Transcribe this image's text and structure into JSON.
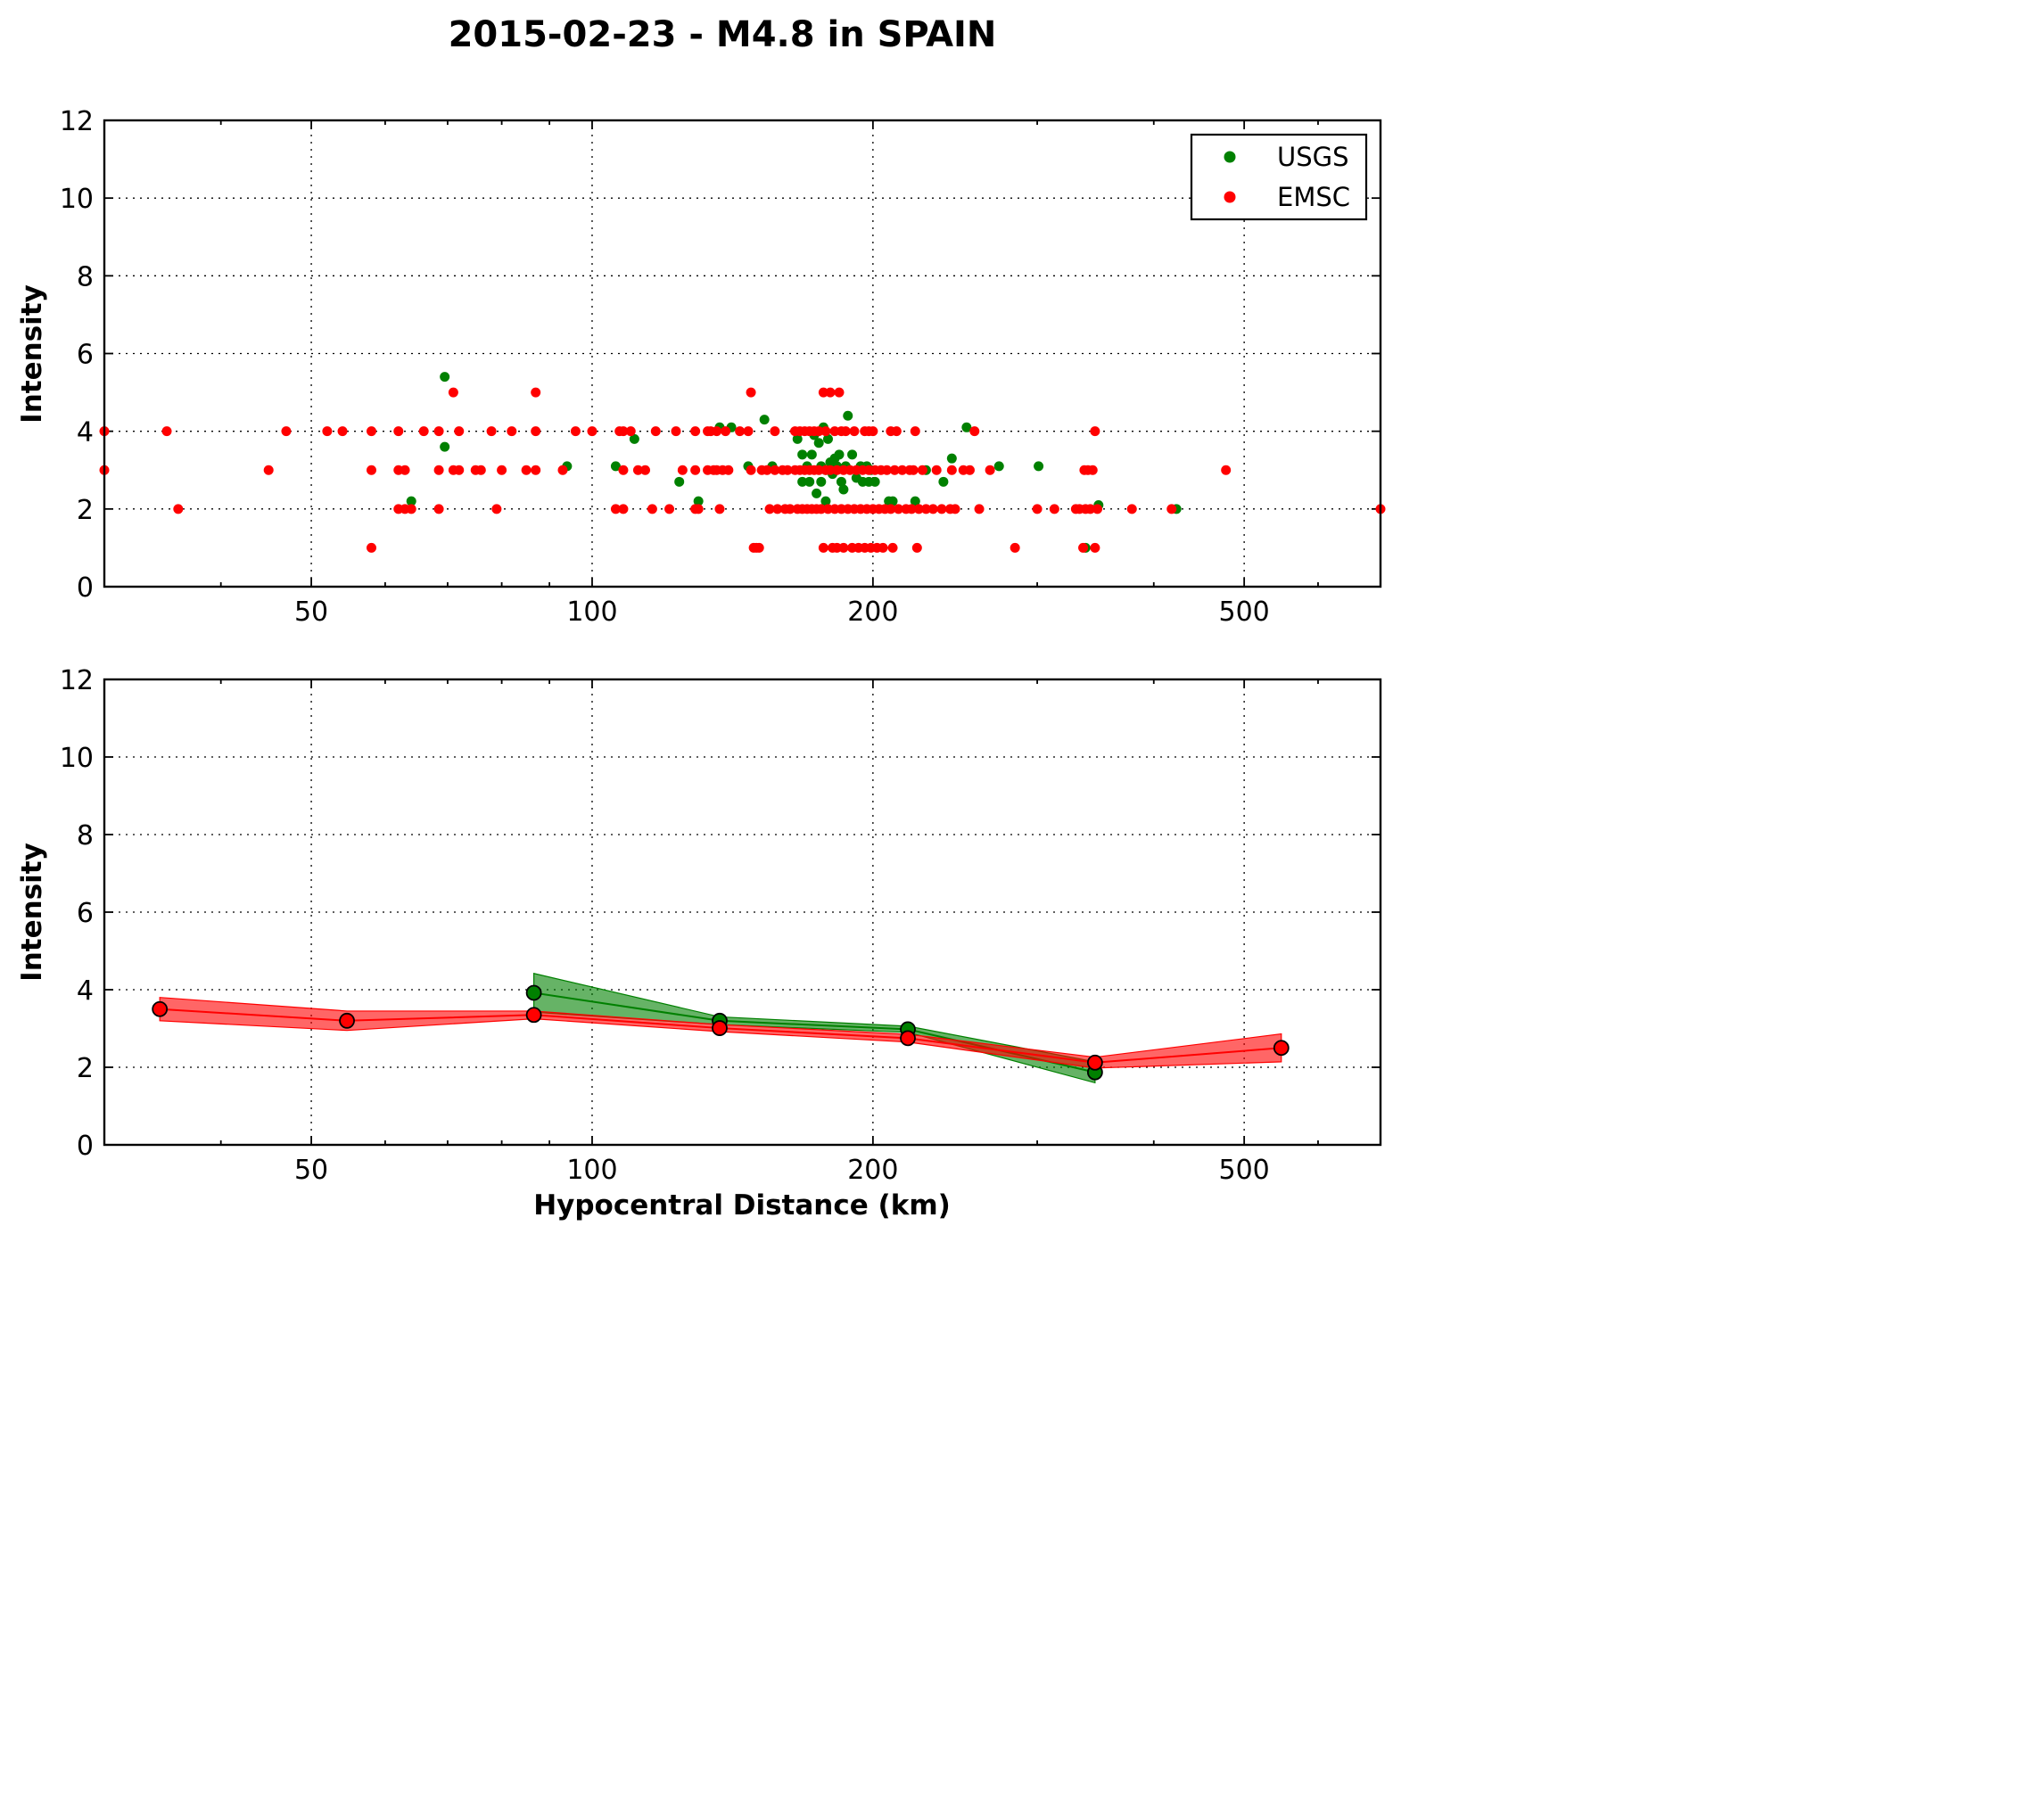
{
  "chart_data": [
    {
      "type": "scatter",
      "title": "2015-02-23 - M4.8 in SPAIN",
      "xlabel": "",
      "ylabel": "Intensity",
      "xscale": "log",
      "xlim": [
        30,
        700
      ],
      "ylim": [
        0,
        12
      ],
      "xticks": [
        50,
        100,
        200,
        500
      ],
      "yticks": [
        0,
        2,
        4,
        6,
        8,
        10,
        12
      ],
      "xtick_labels": [
        "50",
        "100",
        "200",
        "500"
      ],
      "ytick_labels": [
        "0",
        "2",
        "4",
        "6",
        "8",
        "10",
        "12"
      ],
      "grid": true,
      "legend": {
        "position": "top-right",
        "entries": [
          "USGS",
          "EMSC"
        ]
      },
      "series": [
        {
          "name": "USGS",
          "color": "#008000",
          "points": [
            [
              69.5,
              5.4
            ],
            [
              69.5,
              3.6
            ],
            [
              64.0,
              2.2
            ],
            [
              94.0,
              3.1
            ],
            [
              106.0,
              3.1
            ],
            [
              111.0,
              3.8
            ],
            [
              124.0,
              2.7
            ],
            [
              130.0,
              2.2
            ],
            [
              137.0,
              4.1
            ],
            [
              141.0,
              4.1
            ],
            [
              147.0,
              3.1
            ],
            [
              153.0,
              4.3
            ],
            [
              156.0,
              3.1
            ],
            [
              166.0,
              3.8
            ],
            [
              168.0,
              3.4
            ],
            [
              168.0,
              2.7
            ],
            [
              170.0,
              3.1
            ],
            [
              171.0,
              2.7
            ],
            [
              172.0,
              3.4
            ],
            [
              173.0,
              3.9
            ],
            [
              174.0,
              2.4
            ],
            [
              175.0,
              3.7
            ],
            [
              176.0,
              3.1
            ],
            [
              176.0,
              2.7
            ],
            [
              177.0,
              4.1
            ],
            [
              178.0,
              3.0
            ],
            [
              178.0,
              2.2
            ],
            [
              179.0,
              3.8
            ],
            [
              180.0,
              3.2
            ],
            [
              181.0,
              2.9
            ],
            [
              182.0,
              3.3
            ],
            [
              183.0,
              3.1
            ],
            [
              184.0,
              3.4
            ],
            [
              185.0,
              2.7
            ],
            [
              186.0,
              2.5
            ],
            [
              187.0,
              3.1
            ],
            [
              188.0,
              4.4
            ],
            [
              190.0,
              3.4
            ],
            [
              192.0,
              2.8
            ],
            [
              194.0,
              3.1
            ],
            [
              195.0,
              2.7
            ],
            [
              197.0,
              3.1
            ],
            [
              198.0,
              2.7
            ],
            [
              199.0,
              3.0
            ],
            [
              201.0,
              2.7
            ],
            [
              208.0,
              2.2
            ],
            [
              210.0,
              2.2
            ],
            [
              222.0,
              2.2
            ],
            [
              228.0,
              3.0
            ],
            [
              238.0,
              2.7
            ],
            [
              243.0,
              3.3
            ],
            [
              252.0,
              4.1
            ],
            [
              273.0,
              3.1
            ],
            [
              301.0,
              3.1
            ],
            [
              338.0,
              1.0
            ],
            [
              349.0,
              2.1
            ],
            [
              423.0,
              2.0
            ]
          ]
        },
        {
          "name": "EMSC",
          "color": "#ff0000",
          "points": [
            [
              30.0,
              4.0
            ],
            [
              30.0,
              3.0
            ],
            [
              35.0,
              4.0
            ],
            [
              36.0,
              2.0
            ],
            [
              45.0,
              3.0
            ],
            [
              47.0,
              4.0
            ],
            [
              52.0,
              4.0
            ],
            [
              54.0,
              4.0
            ],
            [
              58.0,
              4.0
            ],
            [
              58.0,
              3.0
            ],
            [
              58.0,
              1.0
            ],
            [
              62.0,
              4.0
            ],
            [
              62.0,
              3.0
            ],
            [
              62.0,
              2.0
            ],
            [
              63.0,
              3.0
            ],
            [
              63.0,
              2.0
            ],
            [
              64.0,
              2.0
            ],
            [
              66.0,
              4.0
            ],
            [
              68.5,
              4.0
            ],
            [
              68.5,
              3.0
            ],
            [
              68.5,
              2.0
            ],
            [
              71.0,
              5.0
            ],
            [
              71.0,
              3.0
            ],
            [
              72.0,
              4.0
            ],
            [
              72.0,
              3.0
            ],
            [
              75.0,
              3.0
            ],
            [
              76.0,
              3.0
            ],
            [
              78.0,
              4.0
            ],
            [
              79.0,
              2.0
            ],
            [
              80.0,
              3.0
            ],
            [
              82.0,
              4.0
            ],
            [
              85.0,
              3.0
            ],
            [
              87.0,
              5.0
            ],
            [
              87.0,
              4.0
            ],
            [
              87.0,
              3.0
            ],
            [
              93.0,
              3.0
            ],
            [
              96.0,
              4.0
            ],
            [
              100.0,
              4.0
            ],
            [
              106.0,
              2.0
            ],
            [
              107.0,
              4.0
            ],
            [
              108.0,
              4.0
            ],
            [
              108.0,
              3.0
            ],
            [
              108.0,
              2.0
            ],
            [
              110.0,
              4.0
            ],
            [
              112.0,
              3.0
            ],
            [
              114.0,
              3.0
            ],
            [
              116.0,
              2.0
            ],
            [
              117.0,
              4.0
            ],
            [
              121.0,
              2.0
            ],
            [
              123.0,
              4.0
            ],
            [
              125.0,
              3.0
            ],
            [
              129.0,
              4.0
            ],
            [
              129.0,
              3.0
            ],
            [
              129.0,
              2.0
            ],
            [
              130.0,
              2.0
            ],
            [
              133.0,
              4.0
            ],
            [
              133.0,
              3.0
            ],
            [
              134.0,
              4.0
            ],
            [
              135.0,
              3.0
            ],
            [
              136.0,
              4.0
            ],
            [
              136.0,
              3.0
            ],
            [
              137.0,
              2.0
            ],
            [
              138.0,
              3.0
            ],
            [
              139.0,
              4.0
            ],
            [
              140.0,
              3.0
            ],
            [
              144.0,
              4.0
            ],
            [
              147.0,
              4.0
            ],
            [
              148.0,
              5.0
            ],
            [
              148.0,
              3.0
            ],
            [
              149.0,
              1.0
            ],
            [
              150.0,
              1.0
            ],
            [
              151.0,
              1.0
            ],
            [
              152.0,
              3.0
            ],
            [
              154.0,
              3.0
            ],
            [
              155.0,
              2.0
            ],
            [
              157.0,
              4.0
            ],
            [
              157.0,
              3.0
            ],
            [
              158.0,
              2.0
            ],
            [
              160.0,
              3.0
            ],
            [
              161.0,
              2.0
            ],
            [
              162.0,
              3.0
            ],
            [
              163.0,
              2.0
            ],
            [
              165.0,
              4.0
            ],
            [
              165.0,
              3.0
            ],
            [
              166.0,
              2.0
            ],
            [
              167.0,
              4.0
            ],
            [
              167.0,
              3.0
            ],
            [
              168.0,
              2.0
            ],
            [
              169.0,
              4.0
            ],
            [
              169.0,
              3.0
            ],
            [
              170.0,
              2.0
            ],
            [
              171.0,
              4.0
            ],
            [
              171.0,
              3.0
            ],
            [
              172.0,
              2.0
            ],
            [
              173.0,
              4.0
            ],
            [
              173.0,
              3.0
            ],
            [
              174.0,
              2.0
            ],
            [
              175.0,
              4.0
            ],
            [
              175.0,
              3.0
            ],
            [
              176.0,
              2.0
            ],
            [
              177.0,
              5.0
            ],
            [
              177.0,
              1.0
            ],
            [
              178.0,
              4.0
            ],
            [
              178.0,
              3.0
            ],
            [
              179.0,
              2.0
            ],
            [
              180.0,
              5.0
            ],
            [
              180.0,
              3.0
            ],
            [
              181.0,
              1.0
            ],
            [
              182.0,
              4.0
            ],
            [
              182.0,
              2.0
            ],
            [
              183.0,
              3.0
            ],
            [
              183.0,
              1.0
            ],
            [
              184.0,
              5.0
            ],
            [
              185.0,
              4.0
            ],
            [
              185.0,
              2.0
            ],
            [
              186.0,
              3.0
            ],
            [
              186.0,
              1.0
            ],
            [
              187.0,
              4.0
            ],
            [
              188.0,
              2.0
            ],
            [
              189.0,
              3.0
            ],
            [
              190.0,
              1.0
            ],
            [
              191.0,
              4.0
            ],
            [
              191.0,
              2.0
            ],
            [
              192.0,
              3.0
            ],
            [
              193.0,
              1.0
            ],
            [
              194.0,
              2.0
            ],
            [
              195.0,
              3.0
            ],
            [
              196.0,
              4.0
            ],
            [
              196.0,
              1.0
            ],
            [
              197.0,
              2.0
            ],
            [
              198.0,
              4.0
            ],
            [
              198.0,
              3.0
            ],
            [
              199.0,
              1.0
            ],
            [
              200.0,
              4.0
            ],
            [
              200.0,
              2.0
            ],
            [
              201.0,
              3.0
            ],
            [
              202.0,
              1.0
            ],
            [
              203.0,
              2.0
            ],
            [
              204.0,
              3.0
            ],
            [
              205.0,
              1.0
            ],
            [
              206.0,
              2.0
            ],
            [
              207.0,
              3.0
            ],
            [
              209.0,
              4.0
            ],
            [
              209.0,
              2.0
            ],
            [
              210.0,
              1.0
            ],
            [
              211.0,
              3.0
            ],
            [
              212.0,
              4.0
            ],
            [
              213.0,
              2.0
            ],
            [
              215.0,
              3.0
            ],
            [
              217.0,
              2.0
            ],
            [
              219.0,
              3.0
            ],
            [
              220.0,
              2.0
            ],
            [
              221.0,
              3.0
            ],
            [
              222.0,
              4.0
            ],
            [
              223.0,
              1.0
            ],
            [
              224.0,
              2.0
            ],
            [
              226.0,
              3.0
            ],
            [
              228.0,
              2.0
            ],
            [
              232.0,
              2.0
            ],
            [
              234.0,
              3.0
            ],
            [
              237.0,
              2.0
            ],
            [
              242.0,
              2.0
            ],
            [
              243.0,
              3.0
            ],
            [
              245.0,
              2.0
            ],
            [
              250.0,
              3.0
            ],
            [
              254.0,
              3.0
            ],
            [
              257.0,
              4.0
            ],
            [
              260.0,
              2.0
            ],
            [
              267.0,
              3.0
            ],
            [
              284.0,
              1.0
            ],
            [
              300.0,
              2.0
            ],
            [
              313.0,
              2.0
            ],
            [
              330.0,
              2.0
            ],
            [
              333.0,
              2.0
            ],
            [
              336.0,
              1.0
            ],
            [
              337.0,
              3.0
            ],
            [
              338.0,
              2.0
            ],
            [
              340.0,
              3.0
            ],
            [
              342.0,
              2.0
            ],
            [
              344.0,
              3.0
            ],
            [
              346.0,
              4.0
            ],
            [
              346.0,
              1.0
            ],
            [
              348.0,
              2.0
            ],
            [
              379.0,
              2.0
            ],
            [
              418.0,
              2.0
            ],
            [
              478.0,
              3.0
            ],
            [
              700.0,
              2.0
            ]
          ]
        }
      ]
    },
    {
      "type": "line",
      "title": "",
      "xlabel": "Hypocentral Distance (km)",
      "ylabel": "Intensity",
      "xscale": "log",
      "xlim": [
        30,
        700
      ],
      "ylim": [
        0,
        12
      ],
      "xticks": [
        50,
        100,
        200,
        500
      ],
      "yticks": [
        0,
        2,
        4,
        6,
        8,
        10,
        12
      ],
      "xtick_labels": [
        "50",
        "100",
        "200",
        "500"
      ],
      "ytick_labels": [
        "0",
        "2",
        "4",
        "6",
        "8",
        "10",
        "12"
      ],
      "grid": true,
      "series": [
        {
          "name": "USGS",
          "color": "#008000",
          "x": [
            86.6,
            137.0,
            218.0,
            346.0
          ],
          "y": [
            3.92,
            3.2,
            2.98,
            1.87
          ],
          "band_lower": [
            3.42,
            3.1,
            2.9,
            1.6
          ],
          "band_upper": [
            4.42,
            3.3,
            3.06,
            2.14
          ]
        },
        {
          "name": "EMSC",
          "color": "#ff0000",
          "x": [
            34.4,
            54.6,
            86.6,
            137.0,
            218.0,
            346.0,
            548.0
          ],
          "y": [
            3.5,
            3.2,
            3.35,
            3.01,
            2.75,
            2.12,
            2.5
          ],
          "band_lower": [
            3.2,
            2.95,
            3.25,
            2.92,
            2.65,
            1.98,
            2.14
          ],
          "band_upper": [
            3.8,
            3.45,
            3.45,
            3.1,
            2.85,
            2.26,
            2.86
          ]
        }
      ]
    }
  ]
}
